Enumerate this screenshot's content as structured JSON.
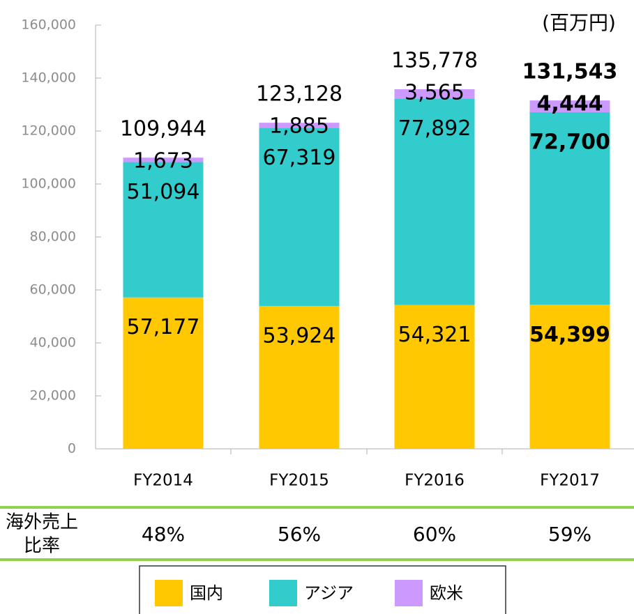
{
  "chart_data": {
    "type": "stacked_bar",
    "unit_label": "(百万円)",
    "categories": [
      "FY2014",
      "FY2015",
      "FY2016",
      "FY2017"
    ],
    "series": [
      {
        "name": "国内",
        "color": "#ffc800",
        "values": [
          57177,
          53924,
          54321,
          54399
        ],
        "value_labels": [
          "57,177",
          "53,924",
          "54,321",
          "54,399"
        ]
      },
      {
        "name": "アジア",
        "color": "#33cccc",
        "values": [
          51094,
          67319,
          77892,
          72700
        ],
        "value_labels": [
          "51,094",
          "67,319",
          "77,892",
          "72,700"
        ]
      },
      {
        "name": "欧米",
        "color": "#cc99ff",
        "values": [
          1673,
          1885,
          3565,
          4444
        ],
        "value_labels": [
          "1,673",
          "1,885",
          "3,565",
          "4,444"
        ]
      }
    ],
    "totals": [
      109944,
      123128,
      135778,
      131543
    ],
    "total_labels": [
      "109,944",
      "123,128",
      "135,778",
      "131,543"
    ],
    "ylim": [
      0,
      160000
    ],
    "yticks": [
      0,
      {
        "value": 20000,
        "label": "20,000"
      },
      {
        "value": 40000,
        "label": "40,000"
      },
      {
        "value": 60000,
        "label": "60,000"
      },
      {
        "value": 80000,
        "label": "80,000"
      },
      {
        "value": 100000,
        "label": "100,000"
      },
      {
        "value": 120000,
        "label": "120,000"
      },
      {
        "value": 140000,
        "label": "140,000"
      },
      {
        "value": 160000,
        "label": "160,000"
      }
    ]
  },
  "overseas_ratio": {
    "label_lines": [
      "海外売上",
      "比率"
    ],
    "values": [
      48,
      56,
      60,
      59
    ],
    "value_labels": [
      "48%",
      "56%",
      "60%",
      "59%"
    ]
  }
}
